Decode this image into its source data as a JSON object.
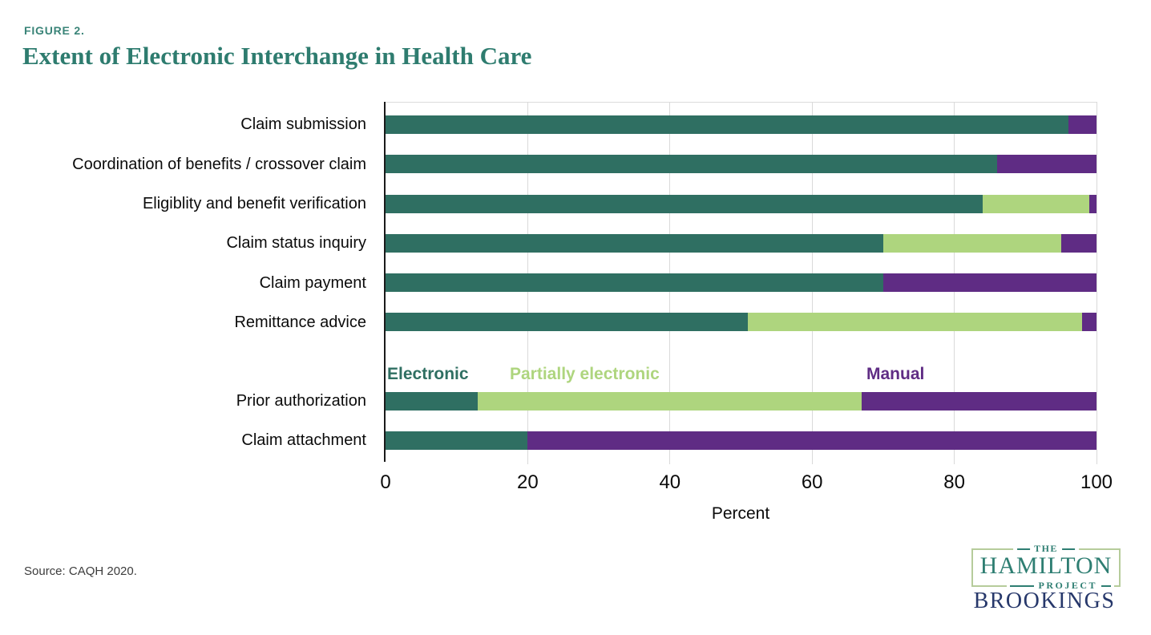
{
  "figure": {
    "label": "FIGURE 2.",
    "title": "Extent of Electronic Interchange in Health Care"
  },
  "chart_data": {
    "type": "bar",
    "orientation": "horizontal",
    "stacked": true,
    "categories": [
      "Claim submission",
      "Coordination of benefits / crossover claim",
      "Eligiblity and benefit verification",
      "Claim status inquiry",
      "Claim payment",
      "Remittance advice",
      "Prior authorization",
      "Claim attachment"
    ],
    "series": [
      {
        "name": "Electronic",
        "color": "#2F6F62",
        "values": [
          96,
          86,
          84,
          70,
          70,
          51,
          13,
          20
        ]
      },
      {
        "name": "Partially electronic",
        "color": "#AED57E",
        "values": [
          0,
          0,
          15,
          25,
          0,
          47,
          54,
          0
        ]
      },
      {
        "name": "Manual",
        "color": "#5F2C84",
        "values": [
          4,
          14,
          1,
          5,
          30,
          2,
          33,
          80
        ]
      }
    ],
    "xlabel": "Percent",
    "xlim": [
      0,
      100
    ],
    "xticks": [
      0,
      20,
      40,
      60,
      80,
      100
    ],
    "grid": "vertical",
    "legend_position": "inline between Remittance advice and Prior authorization rows"
  },
  "colors": {
    "title_teal": "#2E7C6F",
    "figure_label_teal": "#3A8478",
    "electronic": "#2F6F62",
    "partially_electronic": "#AED57E",
    "manual": "#5F2C84",
    "gridline_gray": "#d9d9d9",
    "hamilton_teal": "#2E7E72",
    "logo_border_green": "#B6CC9B",
    "brookings_navy": "#27386B"
  },
  "source": "Source: CAQH 2020.",
  "logos": {
    "hamilton": {
      "line1": "THE",
      "line2": "HAMILTON",
      "line3": "PROJECT"
    },
    "brookings": "BROOKINGS"
  }
}
